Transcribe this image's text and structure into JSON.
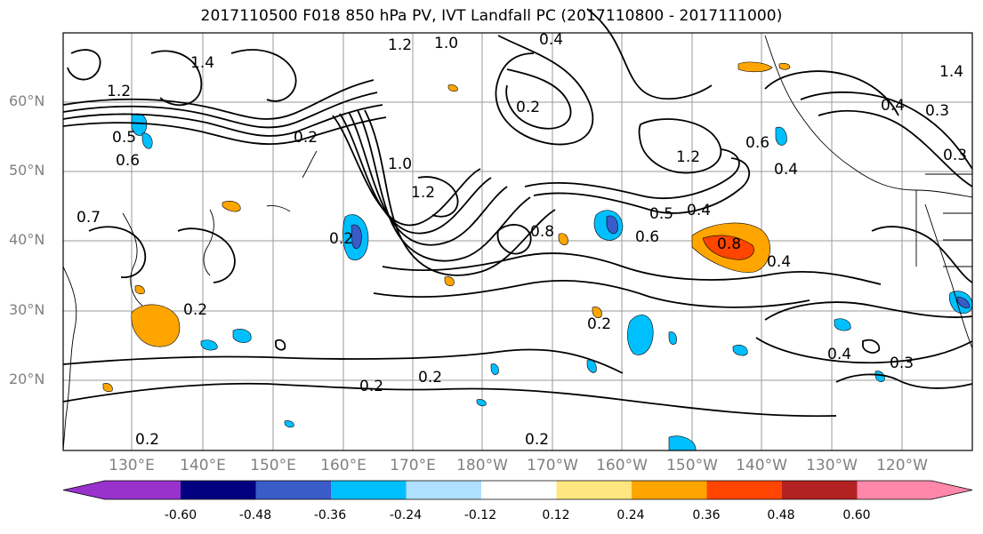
{
  "title": "2017110500 F018 850 hPa PV, IVT Landfall PC (2017110800 - 2017111000)",
  "lat_labels": [
    "60°N",
    "50°N",
    "40°N",
    "30°N",
    "20°N"
  ],
  "lon_labels": [
    "130°E",
    "140°E",
    "150°E",
    "160°E",
    "170°E",
    "180°W",
    "170°W",
    "160°W",
    "150°W",
    "140°W",
    "130°W",
    "120°W"
  ],
  "contour_labels": [
    "1.2",
    "1.0",
    "0.4",
    "1.4",
    "0.2",
    "1.2",
    "0.5",
    "0.6",
    "0.7",
    "0.2",
    "1.0",
    "1.2",
    "0.2",
    "0.8",
    "0.2",
    "0.2",
    "0.2",
    "0.2",
    "0.2",
    "1.2",
    "0.5",
    "0.4",
    "0.6",
    "0.8",
    "0.4",
    "0.6",
    "0.4",
    "0.3",
    "0.4",
    "0.3",
    "0.4",
    "0.2",
    "1.4",
    "0.3"
  ],
  "colorbar": {
    "ticks": [
      "-0.60",
      "-0.48",
      "-0.36",
      "-0.24",
      "-0.12",
      "0.12",
      "0.24",
      "0.36",
      "0.48",
      "0.60"
    ],
    "colors": [
      "#9932cc",
      "#000080",
      "#3a5cc8",
      "#00bfff",
      "#b0e0ff",
      "#ffffff",
      "#ffe680",
      "#ffa500",
      "#ff4500",
      "#b22222",
      "#ff88aa"
    ]
  }
}
